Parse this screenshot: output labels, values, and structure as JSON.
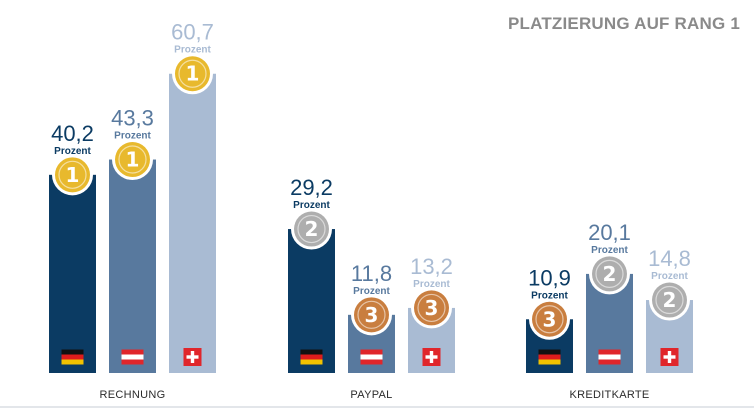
{
  "chart_data": {
    "type": "bar",
    "title": "PLATZIERUNG AUF RANG 1",
    "unit": "Prozent",
    "categories": [
      "RECHNUNG",
      "PAYPAL",
      "KREDITKARTE"
    ],
    "series": [
      {
        "country": "DE",
        "flag": "germany-flag",
        "color": "#0b3b63",
        "values": [
          40.2,
          29.2,
          10.9
        ],
        "labels": [
          "40,2",
          "29,2",
          "10,9"
        ],
        "ranks": [
          1,
          2,
          3
        ]
      },
      {
        "country": "AT",
        "flag": "austria-flag",
        "color": "#58799e",
        "values": [
          43.3,
          11.8,
          20.1
        ],
        "labels": [
          "43,3",
          "11,8",
          "20,1"
        ],
        "ranks": [
          1,
          3,
          2
        ]
      },
      {
        "country": "CH",
        "flag": "switzerland-flag",
        "color": "#a9bbd3",
        "values": [
          60.7,
          13.2,
          14.8
        ],
        "labels": [
          "60,7",
          "13,2",
          "14,8"
        ],
        "ranks": [
          1,
          3,
          2
        ]
      }
    ],
    "label_colors": [
      "#0b3b63",
      "#58799e",
      "#a9bbd3"
    ],
    "medal_colors": {
      "1": "#e8b92d",
      "2": "#aeaeae",
      "3": "#c97e3f"
    },
    "grid": false,
    "legend": "none"
  }
}
